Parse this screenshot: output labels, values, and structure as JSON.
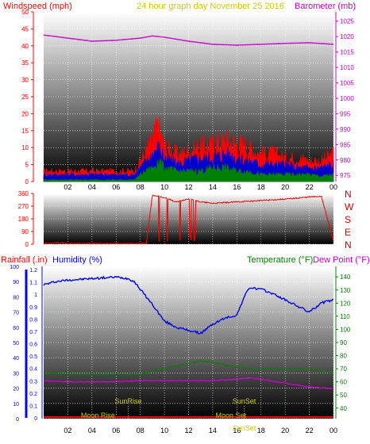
{
  "colors": {
    "wind_red": "#ff0000",
    "wind_blue": "#0000cc",
    "wind_green": "#008000",
    "barometer": "#cc00cc",
    "title": "#cccc00",
    "humidity": "#0000ff",
    "temperature": "#008000",
    "dewpoint": "#cc00cc",
    "rainfall": "#ff0000",
    "rain_axis": "#0000ff",
    "compass": "#cc0000",
    "grid": "#ffffff",
    "sun_moon": "#cccc00"
  },
  "chart_data": [
    {
      "type": "line",
      "title": "24 hour graph day   November 25 2016",
      "left_label": "Windspeed (mph)",
      "right_label": "Barometer (mb)",
      "x_ticks": [
        "02",
        "04",
        "06",
        "08",
        "10",
        "12",
        "14",
        "16",
        "18",
        "20",
        "22",
        "00"
      ],
      "y_left_ticks": [
        "0",
        "5",
        "10",
        "15",
        "20",
        "25",
        "30",
        "35",
        "40",
        "45",
        "50"
      ],
      "y_right_ticks": [
        "975",
        "980",
        "985",
        "990",
        "995",
        "1000",
        "1005",
        "1010",
        "1015",
        "1020",
        "1025"
      ],
      "ylim_left": [
        0,
        50
      ],
      "ylim_right": [
        973,
        1028
      ],
      "xlim": [
        0,
        24
      ],
      "series": [
        {
          "x": [
            0,
            2,
            4,
            6,
            8,
            9,
            10,
            12,
            14,
            16,
            18,
            20,
            22,
            24
          ],
          "values": [
            1020.5,
            1019.5,
            1018.5,
            1018.8,
            1019.5,
            1020.2,
            1019.8,
            1018.5,
            1017.5,
            1017.2,
            1017.5,
            1017.8,
            1018.0,
            1017.5
          ]
        },
        {
          "x": [
            0,
            2,
            4,
            6,
            7.5,
            8,
            9,
            9.5,
            10,
            11,
            12,
            13,
            14,
            15,
            16,
            17,
            18,
            19,
            20,
            21,
            22,
            23,
            24
          ],
          "values": [
            3,
            3,
            3,
            3,
            3,
            6,
            12,
            16,
            10,
            8,
            9,
            10,
            11,
            12,
            11,
            10,
            8,
            8,
            7,
            7,
            6,
            6,
            8
          ]
        },
        {
          "x": [
            0,
            2,
            4,
            6,
            7.5,
            8,
            9,
            9.5,
            10,
            11,
            12,
            13,
            14,
            15,
            16,
            17,
            18,
            19,
            20,
            21,
            22,
            23,
            24
          ],
          "values": [
            2,
            2,
            2,
            2,
            2,
            4,
            8,
            10,
            7,
            5,
            6,
            7,
            7,
            8,
            7,
            6,
            5,
            5,
            5,
            4,
            4,
            4,
            5
          ]
        },
        {
          "x": [
            0,
            2,
            4,
            6,
            7.5,
            8,
            9,
            9.5,
            10,
            11,
            12,
            13,
            14,
            15,
            16,
            17,
            18,
            19,
            20,
            21,
            22,
            23,
            24
          ],
          "values": [
            0.5,
            0.5,
            0.5,
            0.5,
            0.5,
            2,
            4,
            6,
            4,
            3,
            3,
            3,
            4,
            4,
            3,
            3,
            2,
            2,
            2,
            2,
            2,
            1.5,
            2
          ]
        }
      ]
    },
    {
      "type": "line",
      "title": "",
      "left_ticks": [
        "0",
        "90",
        "180",
        "270",
        "360"
      ],
      "right_labels": [
        "N",
        "W",
        "S",
        "E",
        "N"
      ],
      "ylim": [
        0,
        360
      ],
      "xlim": [
        0,
        24
      ],
      "series": [
        {
          "x": [
            0,
            1,
            2,
            4,
            6,
            8.5,
            9,
            9.5,
            10,
            11,
            12,
            13,
            14,
            16,
            18,
            20,
            22,
            23,
            24
          ],
          "values": [
            5,
            10,
            5,
            5,
            5,
            5,
            345,
            340,
            330,
            300,
            320,
            300,
            290,
            300,
            310,
            320,
            335,
            340,
            20
          ]
        }
      ]
    },
    {
      "type": "line",
      "title": "",
      "label_rainfall": "Rainfall (.in)",
      "label_humidity": "Humidity (%)",
      "label_temperature": "Temperature (°F)",
      "label_dewpoint": "Dew Point (°F)",
      "x_ticks": [
        "02",
        "04",
        "06",
        "08",
        "10",
        "12",
        "14",
        "16",
        "18",
        "20",
        "22",
        "00"
      ],
      "rain_ticks": [
        "0",
        "0.1",
        "0.2",
        "0.3",
        "0.4",
        "0.5",
        "0.6",
        "0.7",
        "0.8",
        "0.9",
        "1",
        "1.1",
        "1.2"
      ],
      "humidity_ticks": [
        "0",
        "10",
        "20",
        "30",
        "40",
        "50",
        "60",
        "70",
        "80",
        "90",
        "100"
      ],
      "temp_ticks": [
        "40",
        "50",
        "60",
        "70",
        "80",
        "90",
        "100",
        "110",
        "120",
        "130",
        "140"
      ],
      "ylim_humidity": [
        0,
        100
      ],
      "ylim_temp": [
        32,
        148
      ],
      "xlim": [
        0,
        24
      ],
      "sun_moon": [
        "SunRise",
        "SunSet",
        "Moon Rise",
        "Moon Set",
        "SunSet"
      ],
      "series": [
        {
          "x": [
            0,
            1,
            2,
            4,
            6,
            7,
            7.5,
            8,
            9,
            10,
            11,
            12,
            13,
            14,
            15,
            16,
            16.5,
            17,
            18,
            19,
            20,
            21,
            22,
            23,
            24
          ],
          "values": [
            88,
            90,
            91,
            92,
            93,
            92,
            90,
            85,
            75,
            64,
            60,
            58,
            56,
            62,
            66,
            68,
            78,
            86,
            85,
            82,
            78,
            74,
            70,
            76,
            78
          ]
        },
        {
          "x": [
            0,
            2,
            4,
            6,
            8,
            10,
            12,
            13,
            14,
            15,
            16,
            18,
            20,
            22,
            24
          ],
          "values": [
            67,
            66,
            66,
            66,
            66,
            70,
            74,
            76,
            75,
            73,
            71,
            70,
            70,
            70,
            67
          ]
        },
        {
          "x": [
            0,
            2,
            4,
            6,
            8,
            10,
            12,
            13,
            14,
            16,
            17,
            18,
            20,
            22,
            24
          ],
          "values": [
            61,
            60,
            60,
            60,
            61,
            61,
            61,
            61,
            61,
            62,
            63,
            62,
            59,
            56,
            55
          ]
        },
        {
          "x": [
            0,
            24
          ],
          "values": [
            0,
            0
          ]
        }
      ]
    }
  ]
}
